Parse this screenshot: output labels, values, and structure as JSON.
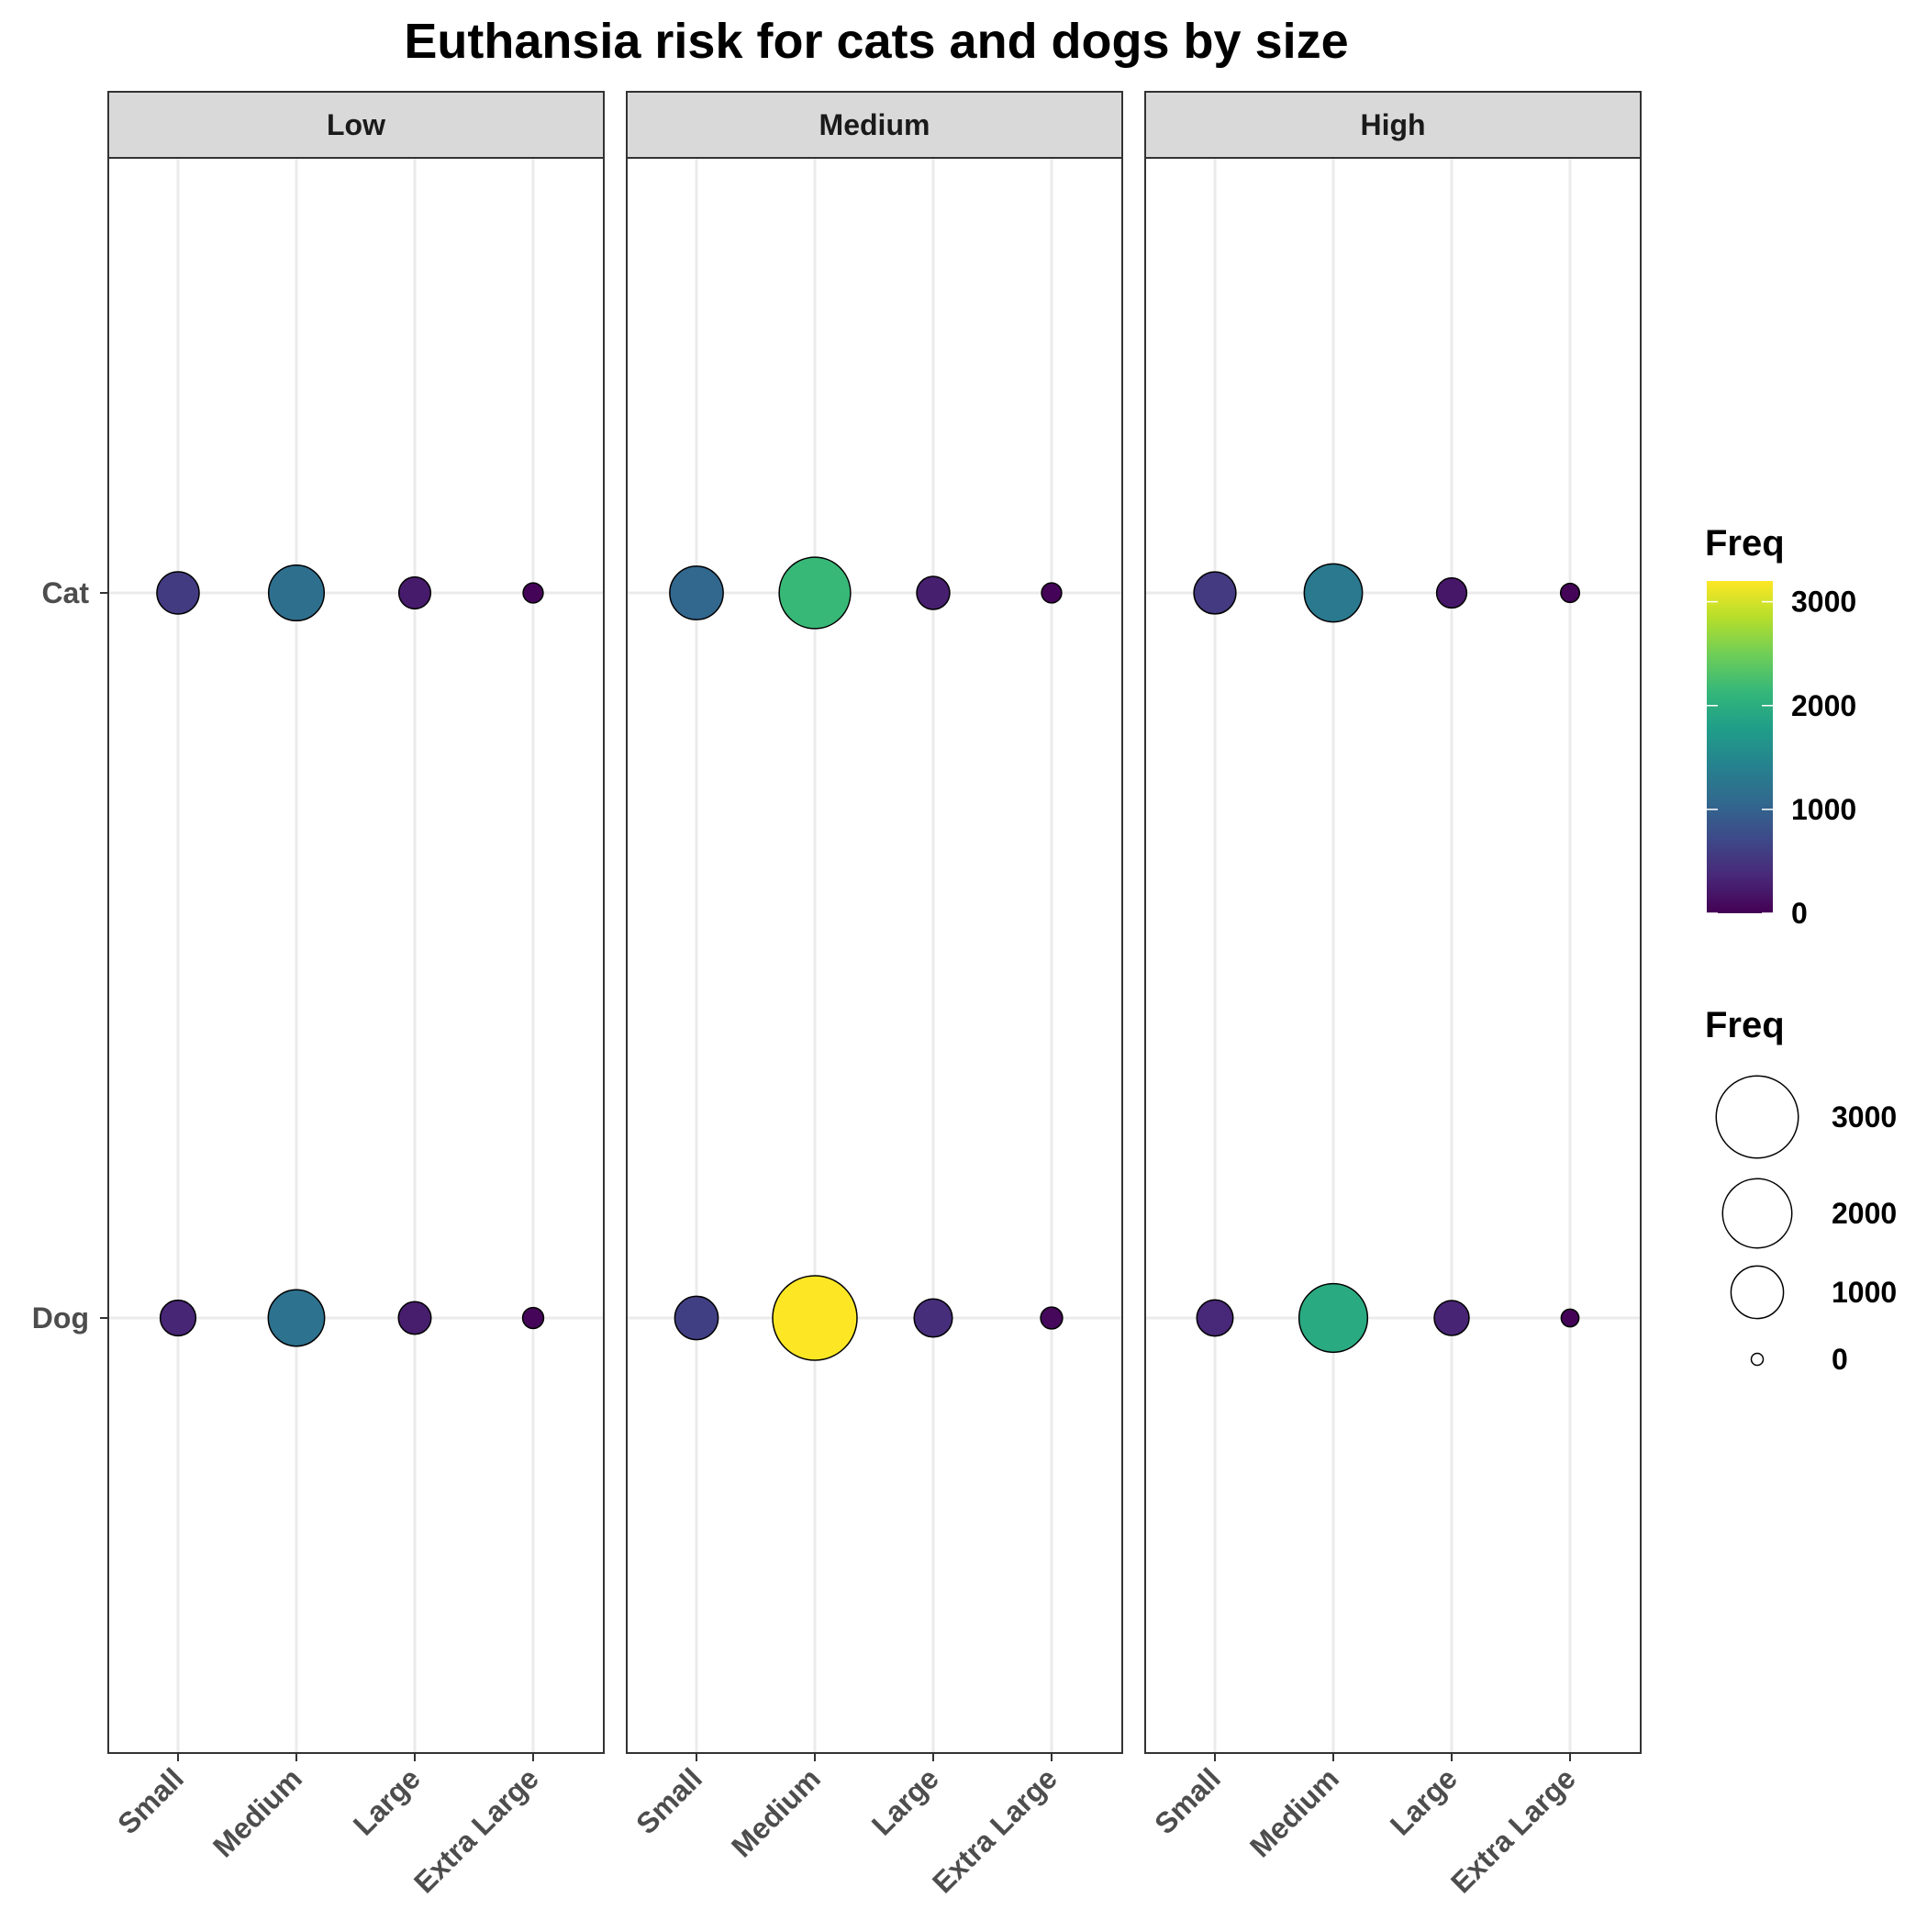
{
  "chart_data": {
    "type": "scatter",
    "title": "Euthansia risk for cats and dogs by size",
    "xlabel": "",
    "ylabel": "",
    "facets": [
      "Low",
      "Medium",
      "High"
    ],
    "x_categories": [
      "Small",
      "Medium",
      "Large",
      "Extra Large"
    ],
    "y_categories": [
      "Cat",
      "Dog"
    ],
    "grid": true,
    "points": [
      {
        "facet": "Low",
        "animal": "Cat",
        "size": "Small",
        "freq": 560
      },
      {
        "facet": "Low",
        "animal": "Cat",
        "size": "Medium",
        "freq": 1160
      },
      {
        "facet": "Low",
        "animal": "Cat",
        "size": "Large",
        "freq": 240
      },
      {
        "facet": "Low",
        "animal": "Cat",
        "size": "Extra Large",
        "freq": 40
      },
      {
        "facet": "Low",
        "animal": "Dog",
        "size": "Small",
        "freq": 340
      },
      {
        "facet": "Low",
        "animal": "Dog",
        "size": "Medium",
        "freq": 1200
      },
      {
        "facet": "Low",
        "animal": "Dog",
        "size": "Large",
        "freq": 260
      },
      {
        "facet": "Low",
        "animal": "Dog",
        "size": "Extra Large",
        "freq": 50
      },
      {
        "facet": "Medium",
        "animal": "Cat",
        "size": "Small",
        "freq": 1050
      },
      {
        "facet": "Medium",
        "animal": "Cat",
        "size": "Medium",
        "freq": 2150
      },
      {
        "facet": "Medium",
        "animal": "Cat",
        "size": "Large",
        "freq": 270
      },
      {
        "facet": "Medium",
        "animal": "Cat",
        "size": "Extra Large",
        "freq": 40
      },
      {
        "facet": "Medium",
        "animal": "Dog",
        "size": "Small",
        "freq": 600
      },
      {
        "facet": "Medium",
        "animal": "Dog",
        "size": "Medium",
        "freq": 3200
      },
      {
        "facet": "Medium",
        "animal": "Dog",
        "size": "Large",
        "freq": 420
      },
      {
        "facet": "Medium",
        "animal": "Dog",
        "size": "Extra Large",
        "freq": 60
      },
      {
        "facet": "High",
        "animal": "Cat",
        "size": "Small",
        "freq": 550
      },
      {
        "facet": "High",
        "animal": "Cat",
        "size": "Medium",
        "freq": 1300
      },
      {
        "facet": "High",
        "animal": "Cat",
        "size": "Large",
        "freq": 200
      },
      {
        "facet": "High",
        "animal": "Cat",
        "size": "Extra Large",
        "freq": 30
      },
      {
        "facet": "High",
        "animal": "Dog",
        "size": "Small",
        "freq": 360
      },
      {
        "facet": "High",
        "animal": "Dog",
        "size": "Medium",
        "freq": 1950
      },
      {
        "facet": "High",
        "animal": "Dog",
        "size": "Large",
        "freq": 320
      },
      {
        "facet": "High",
        "animal": "Dog",
        "size": "Extra Large",
        "freq": 20
      }
    ],
    "color_legend": {
      "title": "Freq",
      "ticks": [
        0,
        1000,
        2000,
        3000
      ],
      "range": [
        0,
        3200
      ],
      "colors": [
        "#440154",
        "#482878",
        "#3e4989",
        "#31688e",
        "#26828e",
        "#1f9e89",
        "#35b779",
        "#6ece58",
        "#b5de2b",
        "#fde725"
      ]
    },
    "size_legend": {
      "title": "Freq",
      "ticks": [
        3000,
        2000,
        1000,
        0
      ]
    }
  }
}
